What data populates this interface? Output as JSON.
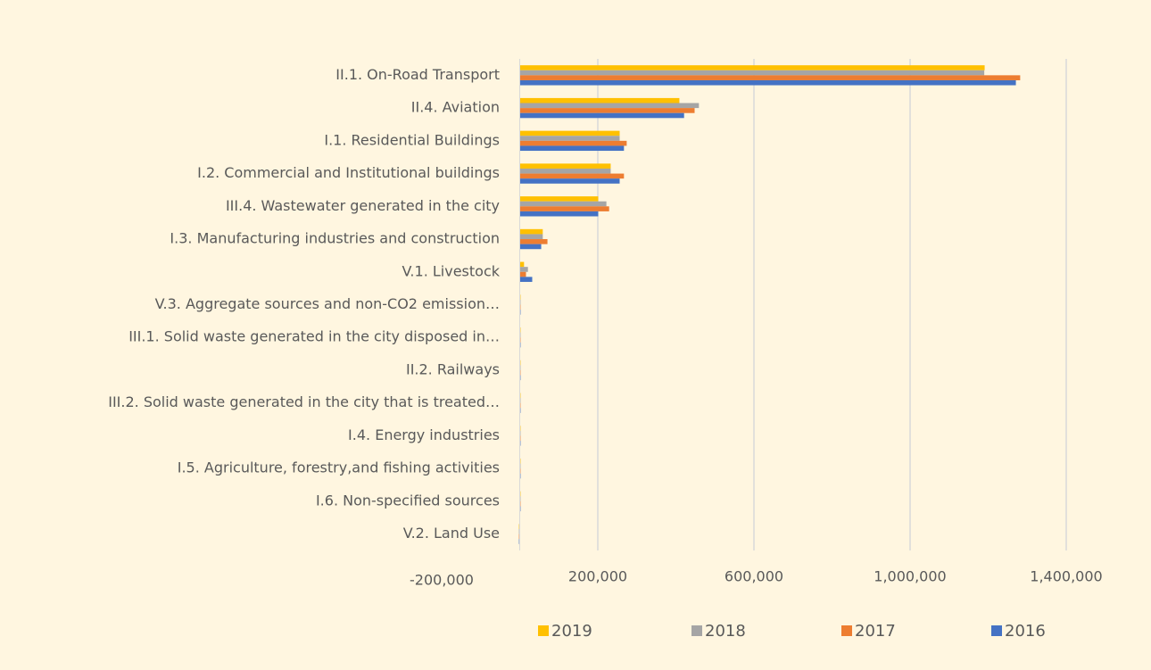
{
  "chart_data": {
    "type": "bar",
    "orientation": "horizontal",
    "categories": [
      "II.1. On-Road Transport",
      "II.4. Aviation",
      "I.1. Residential Buildings",
      "I.2. Commercial and Institutional buildings",
      "III.4. Wastewater generated in the city",
      "I.3. Manufacturing industries and construction",
      "V.1. Livestock",
      "V.3. Aggregate sources and non-CO2 emission…",
      "III.1. Solid waste generated in the city disposed in…",
      "II.2. Railways",
      "III.2. Solid waste generated in the city that is treated…",
      "I.4. Energy industries",
      "I.5. Agriculture, forestry,and fishing activities",
      "I.6. Non-specified sources",
      "V.2. Land Use"
    ],
    "series": [
      {
        "name": "2019",
        "color": "#ffc000",
        "values": [
          1191000,
          409000,
          256000,
          233000,
          201000,
          59000,
          11000,
          2000,
          2000,
          2000,
          2000,
          2000,
          2000,
          2000,
          -2000
        ]
      },
      {
        "name": "2018",
        "color": "#a5a5a5",
        "values": [
          1190000,
          459000,
          256000,
          233000,
          222000,
          59000,
          21000,
          2000,
          2000,
          2000,
          2000,
          2000,
          2000,
          2000,
          -2000
        ]
      },
      {
        "name": "2017",
        "color": "#ed7d31",
        "values": [
          1282000,
          448000,
          274000,
          267000,
          229000,
          71000,
          16000,
          2000,
          2000,
          2000,
          2000,
          2000,
          2000,
          2000,
          -2000
        ]
      },
      {
        "name": "2016",
        "color": "#4472c4",
        "values": [
          1271000,
          421000,
          267000,
          256000,
          201000,
          55000,
          32000,
          2000,
          2000,
          2000,
          2000,
          2000,
          2000,
          2000,
          -2000
        ]
      }
    ],
    "xlim": [
      -200000,
      1400000
    ],
    "xticks": [
      {
        "value": -200000,
        "label": "-200,000"
      },
      {
        "value": 200000,
        "label": "200,000"
      },
      {
        "value": 600000,
        "label": "600,000"
      },
      {
        "value": 1000000,
        "label": "1,000,000"
      },
      {
        "value": 1400000,
        "label": "1,400,000"
      }
    ],
    "grid": true,
    "legend": "bottom"
  }
}
